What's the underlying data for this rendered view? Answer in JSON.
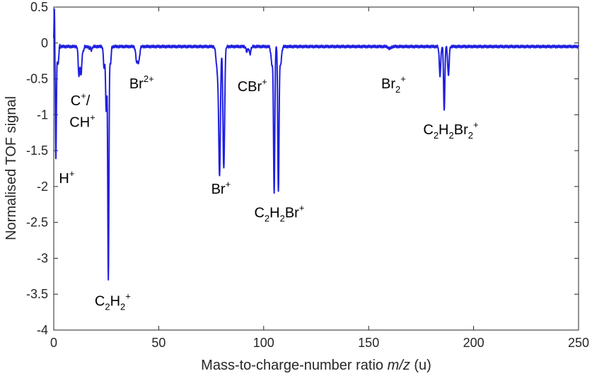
{
  "chart_data": {
    "type": "line",
    "xlabel": "Mass-to-charge-number ratio m/z (u)",
    "xlabel_parts": {
      "prefix": "Mass-to-charge-number ratio ",
      "italic": "m/z",
      "suffix": " (u)"
    },
    "ylabel": "Normalised TOF signal",
    "xlim": [
      0,
      250
    ],
    "ylim": [
      -4,
      0.5
    ],
    "x_ticks": [
      0,
      50,
      100,
      150,
      200,
      250
    ],
    "y_ticks": [
      0.5,
      0,
      -0.5,
      -1,
      -1.5,
      -2,
      -2.5,
      -3,
      -3.5,
      -4
    ],
    "y_tick_labels": [
      "0.5",
      "0",
      "-0.5",
      "-1",
      "-1.5",
      "-2",
      "-2.5",
      "-3",
      "-3.5",
      "-4"
    ],
    "grid": false,
    "line_color": "#1f1fe0",
    "series": [
      {
        "baseline": -0.05,
        "peaks": [
          {
            "x": 0.3,
            "y": 0.5,
            "w": 0.15
          },
          {
            "x": 1.0,
            "y": -1.6,
            "w": 0.25
          },
          {
            "x": 2.0,
            "y": -0.3,
            "w": 0.4
          },
          {
            "x": 12.0,
            "y": -0.45,
            "w": 0.35
          },
          {
            "x": 13.0,
            "y": -0.45,
            "w": 0.35
          },
          {
            "x": 14.0,
            "y": -0.12,
            "w": 0.3
          },
          {
            "x": 17.0,
            "y": -0.08,
            "w": 0.3
          },
          {
            "x": 18.0,
            "y": -0.1,
            "w": 0.3
          },
          {
            "x": 24.0,
            "y": -0.35,
            "w": 0.35
          },
          {
            "x": 25.0,
            "y": -0.95,
            "w": 0.3
          },
          {
            "x": 26.0,
            "y": -3.3,
            "w": 0.28
          },
          {
            "x": 27.0,
            "y": -0.3,
            "w": 0.3
          },
          {
            "x": 39.5,
            "y": -0.25,
            "w": 0.45
          },
          {
            "x": 40.5,
            "y": -0.25,
            "w": 0.45
          },
          {
            "x": 78.0,
            "y": -0.4,
            "w": 0.6
          },
          {
            "x": 79.0,
            "y": -1.75,
            "w": 0.4
          },
          {
            "x": 81.0,
            "y": -1.75,
            "w": 0.4
          },
          {
            "x": 92.0,
            "y": -0.12,
            "w": 0.4
          },
          {
            "x": 93.5,
            "y": -0.15,
            "w": 0.4
          },
          {
            "x": 104.0,
            "y": -0.3,
            "w": 0.5
          },
          {
            "x": 105.0,
            "y": -2.05,
            "w": 0.3
          },
          {
            "x": 107.0,
            "y": -2.05,
            "w": 0.3
          },
          {
            "x": 108.0,
            "y": -0.3,
            "w": 0.5
          },
          {
            "x": 160.0,
            "y": -0.08,
            "w": 0.6
          },
          {
            "x": 184.0,
            "y": -0.45,
            "w": 0.35
          },
          {
            "x": 186.0,
            "y": -0.95,
            "w": 0.3
          },
          {
            "x": 188.0,
            "y": -0.45,
            "w": 0.35
          }
        ]
      }
    ],
    "annotations": [
      {
        "name": "label-h-plus",
        "x": 2.5,
        "y": -1.95,
        "parts": [
          [
            "H"
          ],
          [
            "+",
            "sup"
          ]
        ]
      },
      {
        "name": "label-c-plus",
        "x": 8.0,
        "y": -0.87,
        "parts": [
          [
            "C"
          ],
          [
            "+",
            "sup"
          ],
          [
            "/"
          ]
        ]
      },
      {
        "name": "label-ch-plus",
        "x": 7.5,
        "y": -1.17,
        "parts": [
          [
            "CH"
          ],
          [
            "+",
            "sup"
          ]
        ]
      },
      {
        "name": "label-br2-plus",
        "x": 36.0,
        "y": -0.63,
        "parts": [
          [
            "Br"
          ],
          [
            "2+",
            "sup"
          ]
        ]
      },
      {
        "name": "label-c2h2-plus",
        "x": 19.5,
        "y": -3.66,
        "parts": [
          [
            "C"
          ],
          [
            "2",
            "sub"
          ],
          [
            "H"
          ],
          [
            "2",
            "sub"
          ],
          [
            "+",
            "sup"
          ]
        ]
      },
      {
        "name": "label-br-plus",
        "x": 75.0,
        "y": -2.1,
        "parts": [
          [
            "Br"
          ],
          [
            "+",
            "sup"
          ]
        ]
      },
      {
        "name": "label-cbr-plus",
        "x": 87.5,
        "y": -0.67,
        "parts": [
          [
            "CBr"
          ],
          [
            "+",
            "sup"
          ]
        ]
      },
      {
        "name": "label-c2h2br-plus",
        "x": 95.5,
        "y": -2.43,
        "parts": [
          [
            "C"
          ],
          [
            "2",
            "sub"
          ],
          [
            "H"
          ],
          [
            "2",
            "sub"
          ],
          [
            "Br"
          ],
          [
            "+",
            "sup"
          ]
        ]
      },
      {
        "name": "label-br2-mol-plus",
        "x": 156.0,
        "y": -0.63,
        "parts": [
          [
            "Br"
          ],
          [
            "2",
            "sub"
          ],
          [
            "+",
            "sup"
          ]
        ]
      },
      {
        "name": "label-c2h2br2-plus",
        "x": 176.0,
        "y": -1.27,
        "parts": [
          [
            "C"
          ],
          [
            "2",
            "sub"
          ],
          [
            "H"
          ],
          [
            "2",
            "sub"
          ],
          [
            "Br"
          ],
          [
            "2",
            "sub"
          ],
          [
            "+",
            "sup"
          ]
        ]
      }
    ]
  }
}
